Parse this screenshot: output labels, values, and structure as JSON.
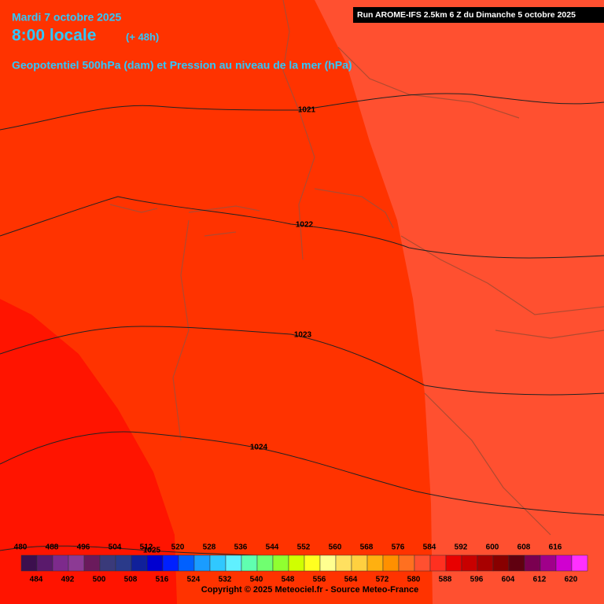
{
  "header": {
    "date": "Mardi 7 octobre 2025",
    "time": "8:00 locale",
    "lead": "(+ 48h)",
    "field": "Geopotentiel 500hPa (dam) et Pression au niveau de la mer (hPa)",
    "run": "Run AROME-IFS 2.5km 6 Z du Dimanche 5 octobre 2025"
  },
  "isobars": [
    {
      "value": 1021
    },
    {
      "value": 1022
    },
    {
      "value": 1023
    },
    {
      "value": 1024
    },
    {
      "value": 1025
    }
  ],
  "colorbar": {
    "values": [
      480,
      484,
      488,
      492,
      496,
      500,
      504,
      508,
      512,
      516,
      520,
      524,
      528,
      532,
      536,
      540,
      544,
      548,
      552,
      556,
      560,
      564,
      568,
      572,
      576,
      580,
      584,
      588,
      592,
      596,
      600,
      604,
      608,
      612,
      616,
      620
    ],
    "colors": [
      "#3c0f4e",
      "#5a1a6c",
      "#7d2a8c",
      "#8c3a94",
      "#6a1a5c",
      "#3a3a7a",
      "#2a3a8a",
      "#10209a",
      "#0000d0",
      "#0020ff",
      "#0060ff",
      "#1a9cff",
      "#30c8ff",
      "#60f0ff",
      "#60ffb0",
      "#70ff70",
      "#90ff30",
      "#d0ff00",
      "#ffff20",
      "#ffff90",
      "#ffe060",
      "#ffd040",
      "#ffb010",
      "#ff9000",
      "#ff7020",
      "#ff5030",
      "#ff3020",
      "#e80000",
      "#c80000",
      "#a80000",
      "#880000",
      "#600010",
      "#7a0050",
      "#a0008a",
      "#d000d0",
      "#ff30ff"
    ]
  },
  "footer": {
    "copyright": "Copyright © 2025 Meteociel.fr - Source Meteo-France"
  }
}
